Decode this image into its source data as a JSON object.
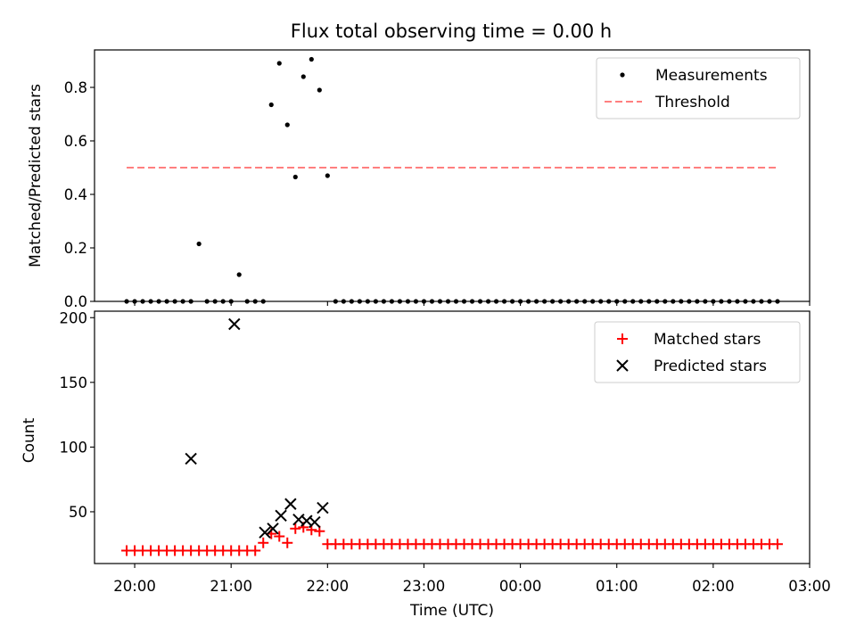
{
  "figure": {
    "title": "Flux total observing time = 0.00 h"
  },
  "chart_data": [
    {
      "type": "scatter",
      "title": "Flux total observing time = 0.00 h",
      "xlabel": "",
      "ylabel": "Matched/Predicted stars",
      "xlim": [
        "19:35",
        "03:00"
      ],
      "ylim": [
        0,
        0.94
      ],
      "yticks": [
        0.0,
        0.2,
        0.4,
        0.6,
        0.8
      ],
      "ytick_labels": [
        "0.0",
        "0.2",
        "0.4",
        "0.6",
        "0.8"
      ],
      "grid": false,
      "legend_position": "top-right",
      "series": [
        {
          "name": "Measurements",
          "kind": "scatter",
          "color": "#000000",
          "marker": "dot",
          "x": [
            "19:55",
            "20:00",
            "20:05",
            "20:10",
            "20:15",
            "20:20",
            "20:25",
            "20:30",
            "20:35",
            "20:40",
            "20:45",
            "20:50",
            "20:55",
            "21:00",
            "21:05",
            "21:10",
            "21:15",
            "21:20",
            "21:25",
            "21:30",
            "21:35",
            "21:40",
            "21:45",
            "21:50",
            "21:55",
            "22:00",
            "22:05",
            "22:10",
            "22:15",
            "22:20",
            "22:25",
            "22:30",
            "22:35",
            "22:40",
            "22:45",
            "22:50",
            "22:55",
            "23:00",
            "23:05",
            "23:10",
            "23:15",
            "23:20",
            "23:25",
            "23:30",
            "23:35",
            "23:40",
            "23:45",
            "23:50",
            "23:55",
            "00:00",
            "00:05",
            "00:10",
            "00:15",
            "00:20",
            "00:25",
            "00:30",
            "00:35",
            "00:40",
            "00:45",
            "00:50",
            "00:55",
            "01:00",
            "01:05",
            "01:10",
            "01:15",
            "01:20",
            "01:25",
            "01:30",
            "01:35",
            "01:40",
            "01:45",
            "01:50",
            "01:55",
            "02:00",
            "02:05",
            "02:10",
            "02:15",
            "02:20",
            "02:25",
            "02:30",
            "02:35",
            "02:40"
          ],
          "y": [
            0,
            0,
            0,
            0,
            0,
            0,
            0,
            0,
            0,
            0.215,
            0,
            0,
            0,
            0,
            0.1,
            0,
            0,
            0,
            0.735,
            0.89,
            0.66,
            0.465,
            0.84,
            0.905,
            0.79,
            0.47,
            0,
            0,
            0,
            0,
            0,
            0,
            0,
            0,
            0,
            0,
            0,
            0,
            0,
            0,
            0,
            0,
            0,
            0,
            0,
            0,
            0,
            0,
            0,
            0,
            0,
            0,
            0,
            0,
            0,
            0,
            0,
            0,
            0,
            0,
            0,
            0,
            0,
            0,
            0,
            0,
            0,
            0,
            0,
            0,
            0,
            0,
            0,
            0,
            0,
            0,
            0,
            0,
            0,
            0,
            0,
            0
          ]
        },
        {
          "name": "Threshold",
          "kind": "line",
          "style": "dashed",
          "color": "#ff7f7f",
          "x": [
            "19:55",
            "02:40"
          ],
          "y": [
            0.5,
            0.5
          ]
        }
      ]
    },
    {
      "type": "scatter",
      "title": "",
      "xlabel": "Time (UTC)",
      "ylabel": "Count",
      "xlim": [
        "19:35",
        "03:00"
      ],
      "ylim": [
        10,
        205
      ],
      "yticks": [
        50,
        100,
        150,
        200
      ],
      "ytick_labels": [
        "50",
        "100",
        "150",
        "200"
      ],
      "xticks": [
        "20:00",
        "21:00",
        "22:00",
        "23:00",
        "00:00",
        "01:00",
        "02:00",
        "03:00"
      ],
      "xtick_labels": [
        "20:00",
        "21:00",
        "22:00",
        "23:00",
        "00:00",
        "01:00",
        "02:00",
        "03:00"
      ],
      "grid": false,
      "legend_position": "top-right",
      "series": [
        {
          "name": "Matched stars",
          "kind": "scatter",
          "color": "#ff0000",
          "marker": "plus",
          "x": [
            "19:55",
            "20:00",
            "20:05",
            "20:10",
            "20:15",
            "20:20",
            "20:25",
            "20:30",
            "20:35",
            "20:40",
            "20:45",
            "20:50",
            "20:55",
            "21:00",
            "21:05",
            "21:10",
            "21:15",
            "21:20",
            "21:25",
            "21:30",
            "21:35",
            "21:40",
            "21:45",
            "21:50",
            "21:55",
            "22:00",
            "22:05",
            "22:10",
            "22:15",
            "22:20",
            "22:25",
            "22:30",
            "22:35",
            "22:40",
            "22:45",
            "22:50",
            "22:55",
            "23:00",
            "23:05",
            "23:10",
            "23:15",
            "23:20",
            "23:25",
            "23:30",
            "23:35",
            "23:40",
            "23:45",
            "23:50",
            "23:55",
            "00:00",
            "00:05",
            "00:10",
            "00:15",
            "00:20",
            "00:25",
            "00:30",
            "00:35",
            "00:40",
            "00:45",
            "00:50",
            "00:55",
            "01:00",
            "01:05",
            "01:10",
            "01:15",
            "01:20",
            "01:25",
            "01:30",
            "01:35",
            "01:40",
            "01:45",
            "01:50",
            "01:55",
            "02:00",
            "02:05",
            "02:10",
            "02:15",
            "02:20",
            "02:25",
            "02:30",
            "02:35",
            "02:40"
          ],
          "y": [
            20,
            20,
            20,
            20,
            20,
            20,
            20,
            20,
            20,
            20,
            20,
            20,
            20,
            20,
            20,
            20,
            20,
            26,
            33,
            31,
            26,
            37,
            38,
            36,
            35,
            25,
            25,
            25,
            25,
            25,
            25,
            25,
            25,
            25,
            25,
            25,
            25,
            25,
            25,
            25,
            25,
            25,
            25,
            25,
            25,
            25,
            25,
            25,
            25,
            25,
            25,
            25,
            25,
            25,
            25,
            25,
            25,
            25,
            25,
            25,
            25,
            25,
            25,
            25,
            25,
            25,
            25,
            25,
            25,
            25,
            25,
            25,
            25,
            25,
            25,
            25,
            25,
            25,
            25,
            25,
            25,
            25
          ]
        },
        {
          "name": "Predicted stars",
          "kind": "scatter",
          "color": "#000000",
          "marker": "x",
          "x": [
            "20:35",
            "21:02",
            "21:21",
            "21:26",
            "21:31",
            "21:37",
            "21:42",
            "21:47",
            "21:52",
            "21:57"
          ],
          "y": [
            91,
            195,
            34,
            37,
            47,
            56,
            44,
            43,
            42,
            53
          ]
        }
      ]
    }
  ]
}
